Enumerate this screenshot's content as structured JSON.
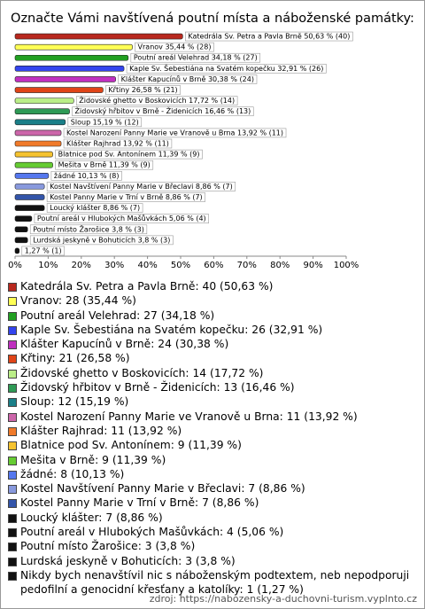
{
  "chart_data": {
    "type": "bar",
    "orientation": "horizontal",
    "title": "Označte Vámi navštívená poutní místa a náboženské památky:",
    "values": [
      50.63,
      35.44,
      34.18,
      32.91,
      30.38,
      26.58,
      17.72,
      16.46,
      15.19,
      13.92,
      13.92,
      11.39,
      11.39,
      10.13,
      8.86,
      8.86,
      8.86,
      5.06,
      3.8,
      3.8,
      1.27
    ],
    "value_labels": [
      "Katedrála Sv. Petra a Pavla Brně 50,63 % (40)",
      "Vranov 35,44 % (28)",
      "Poutní areál Velehrad 34,18 % (27)",
      "Kaple Sv. Šebestiána na Svatém kopečku 32,91 % (26)",
      "Klášter Kapucínů v Brně 30,38 % (24)",
      "Křtiny 26,58 % (21)",
      "Židovské ghetto v Boskovicích 17,72 % (14)",
      "Židovský hřbitov v Brně - Židenicích 16,46 % (13)",
      "Sloup 15,19 % (12)",
      "Kostel Narození Panny Marie ve Vranově u Brna 13,92 % (11)",
      "Klášter Rajhrad 13,92 % (11)",
      "Blatnice pod Sv. Antonínem 11,39 % (9)",
      "Mešita v Brně 11,39 % (9)",
      "žádné 10,13 % (8)",
      "Kostel Navštívení Panny Marie v Břeclavi 8,86 % (7)",
      "Kostel Panny Marie v Trní v Brně 8,86 % (7)",
      "Loucký klášter 8,86 % (7)",
      "Poutní areál v Hlubokých Mašůvkách 5,06 % (4)",
      "Poutní místo Žarošice 3,8 % (3)",
      "Lurdská jeskyně v Bohuticích 3,8 % (3)",
      "1,27 % (1)"
    ],
    "colors": [
      "#b8281e",
      "#ffff55",
      "#22a022",
      "#3344ee",
      "#c030c0",
      "#e04418",
      "#bbee88",
      "#2e9a55",
      "#1a7f88",
      "#cc66aa",
      "#f07a2a",
      "#f5c330",
      "#66cc33",
      "#5577ee",
      "#8899dd",
      "#3355aa",
      "#111111",
      "#111111",
      "#111111",
      "#111111",
      "#111111"
    ],
    "legend_labels": [
      "Katedrála Sv. Petra a Pavla Brně: 40 (50,63 %)",
      "Vranov: 28 (35,44 %)",
      "Poutní areál Velehrad: 27 (34,18 %)",
      "Kaple Sv. Šebestiána na Svatém kopečku: 26 (32,91 %)",
      "Klášter Kapucínů v Brně: 24 (30,38 %)",
      "Křtiny: 21 (26,58 %)",
      "Židovské ghetto v Boskovicích: 14 (17,72 %)",
      "Židovský hřbitov v Brně - Židenicích: 13 (16,46 %)",
      "Sloup: 12 (15,19 %)",
      "Kostel Narození Panny Marie ve Vranově u Brna: 11 (13,92 %)",
      "Klášter Rajhrad: 11 (13,92 %)",
      "Blatnice pod Sv. Antonínem: 9 (11,39 %)",
      "Mešita v Brně: 9 (11,39 %)",
      "žádné: 8 (10,13 %)",
      "Kostel Navštívení Panny Marie v Břeclavi: 7 (8,86 %)",
      "Kostel Panny Marie v Trní v Brně: 7 (8,86 %)",
      "Loucký klášter: 7 (8,86 %)",
      "Poutní areál v Hlubokých Mašůvkách: 4 (5,06 %)",
      "Poutní místo Žarošice: 3 (3,8 %)",
      "Lurdská jeskyně v Bohuticích: 3 (3,8 %)",
      "Nikdy bych nenavštívil nic s náboženským podtextem, neb nepodporuji pedofilní a genocidní křesťany a katolíky: 1 (1,27 %)"
    ],
    "xlim": [
      0,
      100
    ],
    "xticks": [
      {
        "value": 0,
        "label": "0%"
      },
      {
        "value": 10,
        "label": "10%"
      },
      {
        "value": 20,
        "label": "20%"
      },
      {
        "value": 30,
        "label": "30%"
      },
      {
        "value": 40,
        "label": "40%"
      },
      {
        "value": 50,
        "label": "50%"
      },
      {
        "value": 60,
        "label": "60%"
      },
      {
        "value": 70,
        "label": "70%"
      },
      {
        "value": 80,
        "label": "80%"
      },
      {
        "value": 90,
        "label": "90%"
      },
      {
        "value": 100,
        "label": "100%"
      }
    ],
    "source": "zdroj: https://nabozensky-a-duchovni-turism.vyplnto.cz"
  }
}
